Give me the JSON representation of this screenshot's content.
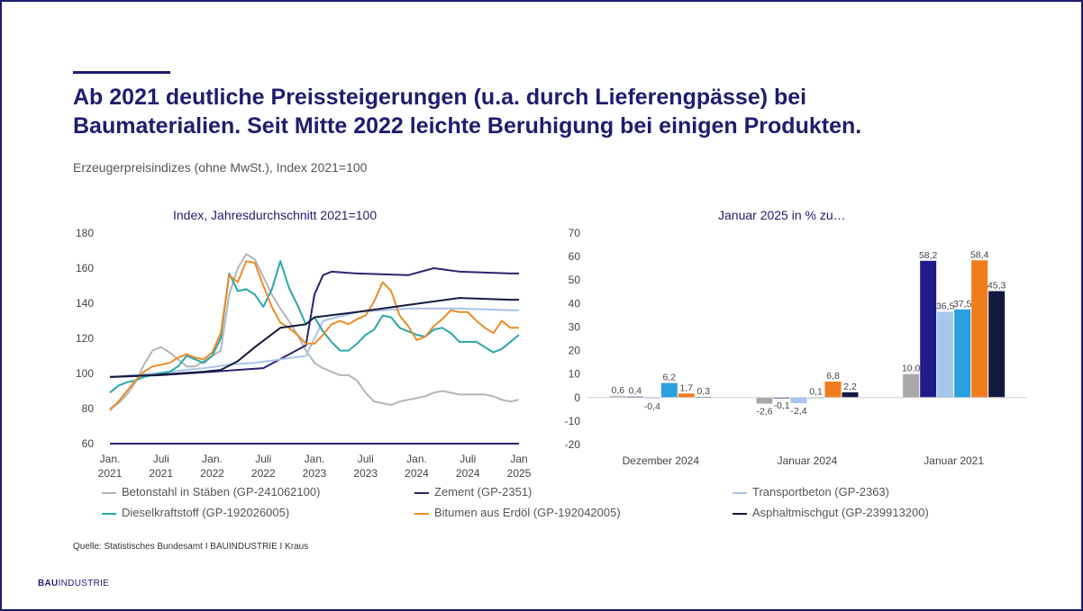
{
  "headline": {
    "line1": "Ab 2021 deutliche Preissteigerungen (u.a. durch Lieferengpässe) bei",
    "line2": "Baumaterialien. Seit Mitte 2022 leichte Beruhigung bei einigen Produkten."
  },
  "subtitle": "Erzeugerpreisindizes (ohne MwSt.), Index 2021=100",
  "source": "Quelle: Statistisches Bundesamt I BAUINDUSTRIE I Kraus",
  "logo": {
    "bold": "BAU",
    "rest": "INDUSTRIE"
  },
  "chart_data": [
    {
      "type": "line",
      "title": "Index, Jahresdurchschnitt 2021=100",
      "ylim": [
        60,
        180
      ],
      "yticks": [
        60,
        80,
        100,
        120,
        140,
        160,
        180
      ],
      "xlim": [
        "2021-01",
        "2025-01"
      ],
      "xticks": [
        {
          "x": "2021-01",
          "l1": "Jan.",
          "l2": "2021"
        },
        {
          "x": "2021-07",
          "l1": "Juli",
          "l2": "2021"
        },
        {
          "x": "2022-01",
          "l1": "Jan.",
          "l2": "2022"
        },
        {
          "x": "2022-07",
          "l1": "Juli",
          "l2": "2022"
        },
        {
          "x": "2023-01",
          "l1": "Jan.",
          "l2": "2023"
        },
        {
          "x": "2023-07",
          "l1": "Juli",
          "l2": "2023"
        },
        {
          "x": "2024-01",
          "l1": "Jan.",
          "l2": "2024"
        },
        {
          "x": "2024-07",
          "l1": "Juli",
          "l2": "2024"
        },
        {
          "x": "2025-01",
          "l1": "Jan",
          "l2": "2025"
        }
      ],
      "grid": false,
      "series": [
        {
          "name": "Betonstahl in Stäben (GP-241062100)",
          "color": "#b5b5b5",
          "x": [
            "2021-01",
            "2021-02",
            "2021-03",
            "2021-04",
            "2021-05",
            "2021-06",
            "2021-07",
            "2021-08",
            "2021-09",
            "2021-10",
            "2021-11",
            "2021-12",
            "2022-01",
            "2022-02",
            "2022-03",
            "2022-04",
            "2022-05",
            "2022-06",
            "2022-07",
            "2022-08",
            "2022-09",
            "2022-10",
            "2022-11",
            "2022-12",
            "2023-01",
            "2023-02",
            "2023-03",
            "2023-04",
            "2023-05",
            "2023-06",
            "2023-07",
            "2023-08",
            "2023-09",
            "2023-10",
            "2023-11",
            "2023-12",
            "2024-01",
            "2024-02",
            "2024-03",
            "2024-04",
            "2024-05",
            "2024-06",
            "2024-07",
            "2024-08",
            "2024-09",
            "2024-10",
            "2024-11",
            "2024-12",
            "2025-01"
          ],
          "y": [
            80,
            83,
            88,
            95,
            105,
            113,
            115,
            112,
            108,
            104,
            104,
            107,
            110,
            113,
            145,
            160,
            168,
            165,
            155,
            145,
            137,
            130,
            122,
            113,
            106,
            103,
            101,
            99,
            99,
            96,
            89,
            84,
            83,
            82,
            84,
            85,
            86,
            87,
            89,
            90,
            89,
            88,
            88,
            88,
            88,
            87,
            85,
            84,
            85
          ]
        },
        {
          "name": "Zement (GP-2351)",
          "color": "#2a2470",
          "x": [
            "2021-01",
            "2021-07",
            "2022-01",
            "2022-07",
            "2022-12",
            "2023-01",
            "2023-02",
            "2023-03",
            "2023-06",
            "2023-12",
            "2024-03",
            "2024-06",
            "2024-12",
            "2025-01"
          ],
          "y": [
            98,
            99,
            101,
            103,
            116,
            145,
            156,
            158,
            157,
            156,
            160,
            158,
            157,
            157
          ]
        },
        {
          "name": "Transportbeton (GP-2363)",
          "color": "#a9c3e8",
          "x": [
            "2021-01",
            "2021-06",
            "2021-12",
            "2022-03",
            "2022-06",
            "2022-12",
            "2023-01",
            "2023-02",
            "2023-06",
            "2023-12",
            "2024-06",
            "2024-12",
            "2025-01"
          ],
          "y": [
            98,
            100,
            103,
            105,
            106,
            110,
            120,
            130,
            135,
            137,
            137,
            136,
            136
          ]
        },
        {
          "name": "Dieselkraftstoff (GP-192026005)",
          "color": "#2aa6a9",
          "x": [
            "2021-01",
            "2021-02",
            "2021-03",
            "2021-04",
            "2021-05",
            "2021-06",
            "2021-07",
            "2021-08",
            "2021-09",
            "2021-10",
            "2021-11",
            "2021-12",
            "2022-01",
            "2022-02",
            "2022-03",
            "2022-04",
            "2022-05",
            "2022-06",
            "2022-07",
            "2022-08",
            "2022-09",
            "2022-10",
            "2022-11",
            "2022-12",
            "2023-01",
            "2023-02",
            "2023-03",
            "2023-04",
            "2023-05",
            "2023-06",
            "2023-07",
            "2023-08",
            "2023-09",
            "2023-10",
            "2023-11",
            "2023-12",
            "2024-01",
            "2024-02",
            "2024-03",
            "2024-04",
            "2024-05",
            "2024-06",
            "2024-07",
            "2024-08",
            "2024-09",
            "2024-10",
            "2024-11",
            "2024-12",
            "2025-01"
          ],
          "y": [
            89,
            93,
            95,
            96,
            98,
            99,
            100,
            101,
            104,
            110,
            108,
            106,
            110,
            120,
            157,
            147,
            148,
            145,
            138,
            148,
            164,
            149,
            139,
            128,
            132,
            124,
            118,
            113,
            113,
            117,
            122,
            125,
            133,
            132,
            126,
            124,
            122,
            121,
            125,
            126,
            123,
            118,
            118,
            118,
            115,
            112,
            114,
            118,
            122
          ]
        },
        {
          "name": "Bitumen aus Erdöl (GP-192042005)",
          "color": "#ec8b27",
          "x": [
            "2021-01",
            "2021-02",
            "2021-03",
            "2021-04",
            "2021-05",
            "2021-06",
            "2021-07",
            "2021-08",
            "2021-09",
            "2021-10",
            "2021-11",
            "2021-12",
            "2022-01",
            "2022-02",
            "2022-03",
            "2022-04",
            "2022-05",
            "2022-06",
            "2022-07",
            "2022-08",
            "2022-09",
            "2022-10",
            "2022-11",
            "2022-12",
            "2023-01",
            "2023-02",
            "2023-03",
            "2023-04",
            "2023-05",
            "2023-06",
            "2023-07",
            "2023-08",
            "2023-09",
            "2023-10",
            "2023-11",
            "2023-12",
            "2024-01",
            "2024-02",
            "2024-03",
            "2024-04",
            "2024-05",
            "2024-06",
            "2024-07",
            "2024-08",
            "2024-09",
            "2024-10",
            "2024-11",
            "2024-12",
            "2025-01"
          ],
          "y": [
            79,
            84,
            90,
            96,
            101,
            104,
            105,
            106,
            109,
            111,
            109,
            108,
            112,
            123,
            156,
            152,
            164,
            163,
            150,
            138,
            129,
            126,
            122,
            117,
            117,
            122,
            128,
            130,
            128,
            131,
            133,
            141,
            152,
            147,
            133,
            127,
            119,
            121,
            127,
            131,
            136,
            135,
            135,
            130,
            126,
            123,
            130,
            126,
            126
          ]
        },
        {
          "name": "Asphaltmischgut (GP-239913200)",
          "color": "#141b3d",
          "x": [
            "2021-01",
            "2021-06",
            "2021-12",
            "2022-02",
            "2022-04",
            "2022-06",
            "2022-09",
            "2022-12",
            "2023-01",
            "2023-06",
            "2023-12",
            "2024-06",
            "2024-12",
            "2025-01"
          ],
          "y": [
            98,
            99,
            101,
            102,
            107,
            115,
            126,
            128,
            132,
            135,
            139,
            143,
            142,
            142
          ]
        }
      ]
    },
    {
      "type": "bar",
      "title": "Januar 2025 in % zu…",
      "ylim": [
        -20,
        70
      ],
      "yticks": [
        -20,
        -10,
        0,
        10,
        20,
        30,
        40,
        50,
        60,
        70
      ],
      "categories": [
        "Dezember 2024",
        "Januar 2024",
        "Januar 2021"
      ],
      "series": [
        {
          "name": "Betonstahl in Stäben (GP-241062100)",
          "color": "#a8a8a8",
          "values": [
            0.6,
            -2.6,
            10.0
          ],
          "labels": [
            "0,6",
            "-2,6",
            "10,0"
          ]
        },
        {
          "name": "Zement (GP-2351)",
          "color": "#201c8c",
          "values": [
            0.4,
            -0.1,
            58.2
          ],
          "labels": [
            "0,4",
            "-0,1",
            "58,2"
          ]
        },
        {
          "name": "Transportbeton (GP-2363)",
          "color": "#a5c6ee",
          "values": [
            -0.4,
            -2.4,
            36.5
          ],
          "labels": [
            "-0,4",
            "-2,4",
            "36,5"
          ]
        },
        {
          "name": "Dieselkraftstoff (GP-192026005)",
          "color": "#2aa0de",
          "values": [
            6.2,
            0.1,
            37.5
          ],
          "labels": [
            "6,2",
            "0,1",
            "37,5"
          ]
        },
        {
          "name": "Bitumen aus Erdöl (GP-192042005)",
          "color": "#ef7d1c",
          "values": [
            1.7,
            6.8,
            58.4
          ],
          "labels": [
            "1,7",
            "6,8",
            "58,4"
          ]
        },
        {
          "name": "Asphaltmischgut (GP-239913200)",
          "color": "#121a3f",
          "values": [
            0.3,
            2.2,
            45.3
          ],
          "labels": [
            "0,3",
            "2,2",
            "45,3"
          ]
        }
      ]
    }
  ]
}
